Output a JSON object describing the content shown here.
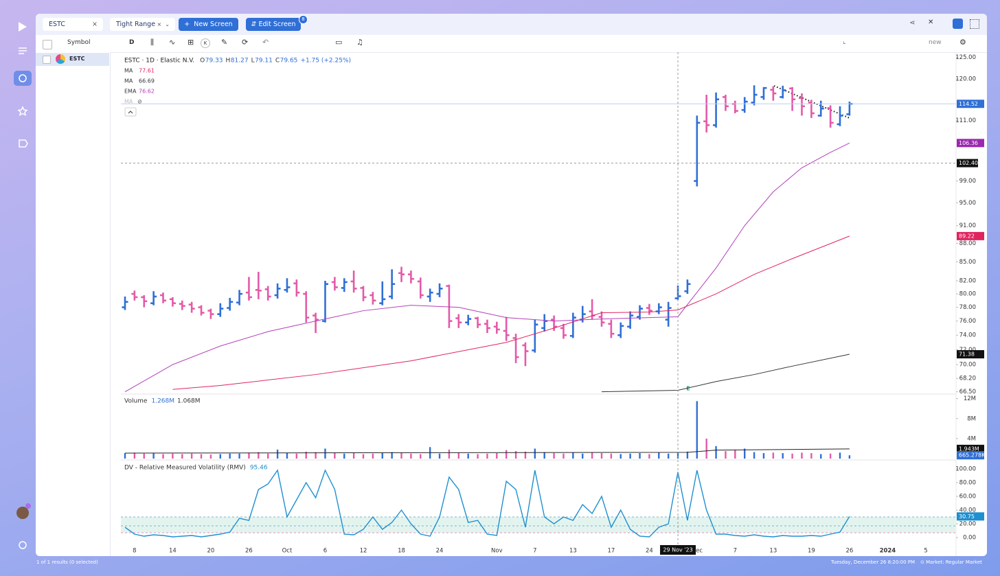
{
  "tabs": [
    "ESTC",
    "Tight Range"
  ],
  "buttons": [
    "New Screen",
    "Edit Screen"
  ],
  "badge": "8",
  "toolbar": {
    "interval": "D",
    "k": "K",
    "layout": "new"
  },
  "watchlist": {
    "header": "Symbol",
    "rows": [
      "ESTC"
    ]
  },
  "footer": {
    "results": "1 of 1 results (0 selected)",
    "time": "Tuesday, December 26 8:20:00  PM",
    "market": "Market: Regular Market"
  },
  "chart_data": [
    {
      "type": "ohlc",
      "title": "ESTC · 1D · Elastic N.V.",
      "ohlc_legend": [
        {
          "key": "O",
          "value": "79.33"
        },
        {
          "key": "H",
          "value": "81.27"
        },
        {
          "key": "L",
          "value": "79.11"
        },
        {
          "key": "C",
          "value": "79.65"
        }
      ],
      "change": "+1.75 (+2.25%)",
      "hidden_indicator": "MA",
      "event": "E",
      "log_scale": true,
      "ylim": [
        66.3,
        125.6
      ],
      "yticks": [
        {
          "value": 125,
          "label": "125.00"
        },
        {
          "value": 120,
          "label": "120.00"
        },
        {
          "value": 111,
          "label": "111.00"
        },
        {
          "value": 99,
          "label": "99.00"
        },
        {
          "value": 95,
          "label": "95.00"
        },
        {
          "value": 91,
          "label": "91.00"
        },
        {
          "value": 88,
          "label": "88.00"
        },
        {
          "value": 85,
          "label": "85.00"
        },
        {
          "value": 82,
          "label": "82.00"
        },
        {
          "value": 80,
          "label": "80.00"
        },
        {
          "value": 78,
          "label": "78.00"
        },
        {
          "value": 76,
          "label": "76.00"
        },
        {
          "value": 74,
          "label": "74.00"
        },
        {
          "value": 72,
          "label": "72.00"
        },
        {
          "value": 70,
          "label": "70.00"
        },
        {
          "value": 68.2,
          "label": "68.20"
        },
        {
          "value": 66.5,
          "label": "66.50"
        }
      ],
      "up_color": "#2f6fd6",
      "down_color": "#e35aa8",
      "open": [
        78.0,
        80.0,
        79.5,
        78.6,
        79.8,
        79.2,
        78.5,
        78.4,
        78.0,
        77.5,
        77.0,
        77.9,
        78.7,
        80.2,
        80.6,
        80.7,
        79.8,
        80.6,
        81.6,
        80.0,
        76.8,
        76.0,
        81.8,
        80.9,
        81.9,
        80.9,
        79.8,
        78.6,
        79.6,
        83.2,
        83.0,
        81.9,
        79.6,
        80.0,
        81.2,
        76.4,
        75.8,
        76.4,
        75.6,
        75.2,
        74.6,
        73.6,
        72.6,
        71.9,
        75.0,
        76.2,
        75.0,
        73.9,
        76.2,
        77.4,
        76.6,
        75.6,
        74.0,
        75.2,
        76.6,
        77.9,
        77.4,
        76.2,
        79.33,
        80.4,
        99.0,
        110.8,
        110.0,
        116.0,
        114.5,
        113.2,
        114.8,
        116.0,
        117.6,
        116.0,
        117.9,
        115.8,
        114.8,
        112.0,
        113.6,
        110.2,
        112.3
      ],
      "high": [
        79.6,
        80.5,
        79.8,
        80.4,
        80.2,
        79.5,
        79.0,
        78.8,
        78.3,
        77.8,
        78.6,
        79.4,
        80.6,
        82.6,
        83.4,
        81.2,
        81.6,
        82.4,
        82.2,
        80.4,
        77.2,
        82.0,
        82.6,
        82.4,
        83.6,
        81.2,
        80.3,
        81.9,
        83.8,
        84.2,
        83.6,
        82.5,
        80.8,
        81.6,
        81.4,
        77.0,
        76.9,
        76.6,
        76.2,
        75.9,
        76.6,
        74.2,
        73.0,
        76.2,
        77.0,
        76.8,
        75.6,
        77.2,
        78.2,
        79.2,
        77.4,
        76.2,
        75.8,
        77.4,
        78.3,
        78.5,
        78.6,
        78.8,
        81.27,
        82.2,
        112.0,
        116.5,
        117.0,
        116.5,
        115.2,
        116.0,
        118.6,
        118.2,
        118.4,
        118.5,
        118.2,
        116.8,
        115.4,
        115.2,
        114.2,
        114.0,
        115.0
      ],
      "low": [
        77.6,
        79.0,
        78.0,
        78.3,
        78.6,
        78.1,
        77.6,
        77.2,
        76.8,
        76.3,
        76.6,
        77.5,
        78.3,
        79.0,
        79.2,
        79.0,
        79.3,
        80.2,
        79.6,
        75.8,
        74.3,
        75.8,
        80.5,
        80.3,
        80.2,
        78.9,
        78.4,
        78.3,
        79.2,
        81.8,
        81.6,
        79.3,
        78.8,
        79.5,
        75.0,
        75.0,
        75.4,
        75.0,
        74.3,
        74.2,
        73.2,
        70.2,
        69.8,
        71.6,
        74.5,
        74.6,
        73.5,
        73.6,
        75.8,
        76.2,
        75.2,
        73.6,
        73.6,
        74.9,
        76.2,
        76.9,
        77.0,
        75.2,
        79.11,
        80.0,
        98.0,
        108.5,
        109.5,
        113.0,
        112.5,
        112.6,
        114.2,
        115.4,
        115.2,
        115.7,
        113.0,
        112.0,
        111.5,
        111.8,
        109.5,
        109.8,
        112.0
      ],
      "close": [
        78.8,
        79.5,
        78.9,
        79.6,
        79.0,
        78.6,
        78.2,
        77.8,
        77.2,
        77.0,
        77.8,
        78.8,
        80.0,
        79.5,
        80.5,
        79.6,
        80.8,
        81.0,
        80.2,
        76.5,
        76.2,
        81.5,
        81.0,
        81.8,
        80.8,
        79.5,
        79.0,
        79.2,
        81.5,
        83.0,
        82.3,
        79.8,
        80.2,
        80.8,
        76.0,
        75.8,
        76.3,
        75.5,
        75.0,
        74.8,
        74.0,
        71.0,
        71.8,
        75.5,
        76.0,
        75.2,
        74.0,
        76.5,
        77.0,
        76.8,
        75.8,
        74.2,
        75.3,
        76.8,
        77.8,
        77.5,
        78.0,
        77.9,
        79.65,
        81.5,
        110.5,
        110.0,
        115.5,
        114.0,
        113.0,
        115.0,
        116.5,
        118.0,
        116.8,
        117.5,
        115.5,
        114.0,
        112.5,
        113.5,
        110.5,
        112.0,
        114.52
      ],
      "series": [
        {
          "name": "MA",
          "legend_value": "77.61",
          "color": "#e0245e",
          "x": [
            5,
            10,
            20,
            30,
            40,
            45,
            50,
            55,
            58,
            62,
            66,
            70,
            76
          ],
          "values": [
            66.8,
            67.3,
            68.7,
            70.5,
            73,
            75,
            77.2,
            77.3,
            77.61,
            80,
            83,
            85.5,
            89.22
          ]
        },
        {
          "name": "MA",
          "legend_value": "66.69",
          "color": "#333333",
          "x": [
            50,
            58,
            62,
            66,
            70,
            76
          ],
          "values": [
            66.5,
            66.69,
            67.8,
            68.7,
            69.8,
            71.38
          ]
        },
        {
          "name": "EMA",
          "legend_value": "76.62",
          "color": "#b23fb8",
          "x": [
            0,
            5,
            10,
            15,
            20,
            25,
            30,
            35,
            40,
            45,
            50,
            55,
            58,
            62,
            65,
            68,
            71,
            74,
            76
          ],
          "values": [
            66.5,
            70,
            72.5,
            74.5,
            76,
            77.5,
            78.3,
            78,
            76.5,
            76,
            76.3,
            76.5,
            76.62,
            84,
            91,
            97,
            101.5,
            104.5,
            106.36
          ]
        }
      ],
      "axis_labels": [
        {
          "value": 114.52,
          "label": "114.52",
          "color": "#2f6fd6"
        },
        {
          "value": 106.36,
          "label": "106.36",
          "color": "#9c27b0"
        },
        {
          "value": 89.22,
          "label": "89.22",
          "color": "#e0245e"
        },
        {
          "value": 71.38,
          "label": "71.38",
          "color": "#111111"
        }
      ],
      "crosshair": {
        "value": 102.4,
        "label": "102.40"
      }
    },
    {
      "type": "bar",
      "title": "Volume",
      "legend": [
        "1.268M",
        "1.068M"
      ],
      "ylim": [
        0,
        12500000
      ],
      "yticks": [
        {
          "value": 4000000,
          "label": "4M"
        },
        {
          "value": 8000000,
          "label": "8M"
        },
        {
          "value": 12000000,
          "label": "12M"
        }
      ],
      "values": [
        1100000,
        1200000,
        1000000,
        1100000,
        900000,
        1000000,
        900000,
        1000000,
        900000,
        800000,
        900000,
        1000000,
        1000000,
        1200000,
        1300000,
        1000000,
        1800000,
        1100000,
        1000000,
        1400000,
        1300000,
        2000000,
        1200000,
        1000000,
        1100000,
        900000,
        1000000,
        1100000,
        1300000,
        1200000,
        1000000,
        900000,
        2300000,
        1000000,
        1800000,
        1200000,
        1000000,
        900000,
        1000000,
        1100000,
        1700000,
        1500000,
        1400000,
        2000000,
        1300000,
        1100000,
        1000000,
        1200000,
        1000000,
        1300000,
        1100000,
        1000000,
        900000,
        1000000,
        1100000,
        900000,
        1200000,
        1000000,
        1268000,
        1400000,
        11500000,
        4000000,
        2500000,
        1500000,
        1800000,
        2000000,
        1300000,
        1100000,
        1200000,
        1100000,
        1000000,
        1200000,
        1100000,
        900000,
        1000000,
        1200000,
        665278
      ],
      "series": [
        {
          "color": "#222222",
          "x": [
            0,
            59,
            62,
            76
          ],
          "values": [
            1100000,
            1250000,
            1700000,
            1943000
          ]
        }
      ],
      "axis_labels": [
        {
          "value": 1943000,
          "label": "1.943M",
          "color": "#111111"
        },
        {
          "value": 665278,
          "label": "665.278K",
          "color": "#2f6fd6"
        }
      ]
    },
    {
      "type": "line",
      "title": "DV - Relative Measured Volatility (RMV)",
      "legend_value": "95.46",
      "color": "#1e8fd0",
      "ylim": [
        -7,
        108
      ],
      "yticks": [
        {
          "value": 100,
          "label": "100.00"
        },
        {
          "value": 80,
          "label": "80.00"
        },
        {
          "value": 60,
          "label": "60.00"
        },
        {
          "value": 40,
          "label": "40.00"
        },
        {
          "value": 20,
          "label": "20.00"
        },
        {
          "value": 0,
          "label": "0.00"
        }
      ],
      "levels": [
        30,
        17,
        7
      ],
      "values": [
        15,
        5,
        2,
        4,
        3,
        1,
        2,
        3,
        1,
        3,
        5,
        8,
        28,
        25,
        70,
        78,
        98,
        30,
        55,
        80,
        58,
        98,
        70,
        5,
        4,
        12,
        30,
        12,
        22,
        40,
        20,
        5,
        2,
        30,
        88,
        70,
        22,
        25,
        5,
        3,
        82,
        70,
        15,
        98,
        30,
        20,
        30,
        25,
        48,
        35,
        60,
        15,
        40,
        12,
        2,
        1,
        15,
        20,
        95.46,
        25,
        98,
        40,
        5,
        5,
        3,
        2,
        4,
        2,
        1,
        3,
        2,
        2,
        3,
        2,
        5,
        8,
        30.75
      ],
      "axis_labels": [
        {
          "value": 30.75,
          "label": "30.75",
          "color": "#1e8fd0"
        }
      ],
      "xticks": [
        {
          "value": 1,
          "label": "8"
        },
        {
          "value": 5,
          "label": "14"
        },
        {
          "value": 9,
          "label": "20"
        },
        {
          "value": 13,
          "label": "26"
        },
        {
          "value": 17,
          "label": "Oct"
        },
        {
          "value": 21,
          "label": "6"
        },
        {
          "value": 25,
          "label": "12"
        },
        {
          "value": 29,
          "label": "18"
        },
        {
          "value": 33,
          "label": "24"
        },
        {
          "value": 39,
          "label": "Nov"
        },
        {
          "value": 43,
          "label": "7"
        },
        {
          "value": 47,
          "label": "13"
        },
        {
          "value": 51,
          "label": "17"
        },
        {
          "value": 55,
          "label": "24"
        },
        {
          "value": 60,
          "label": "Dec"
        },
        {
          "value": 64,
          "label": "7"
        },
        {
          "value": 68,
          "label": "13"
        },
        {
          "value": 72,
          "label": "19"
        },
        {
          "value": 76,
          "label": "26"
        },
        {
          "value": 80,
          "label": "2024"
        },
        {
          "value": 84,
          "label": "5"
        }
      ],
      "crosshair": {
        "value": 58,
        "label": "29 Nov '23"
      }
    }
  ]
}
